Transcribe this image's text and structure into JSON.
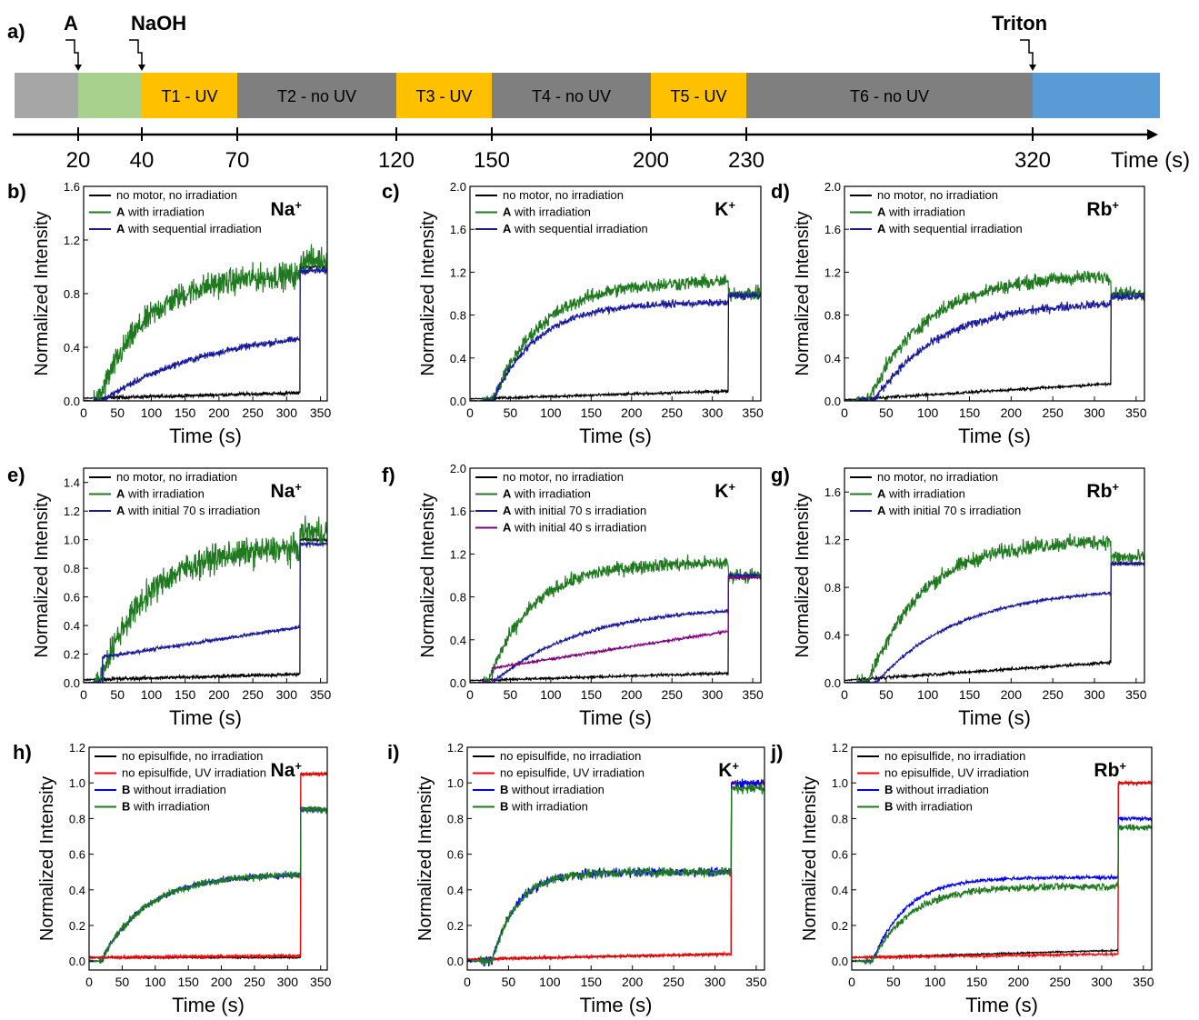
{
  "timeline": {
    "panel_label": "a)",
    "markers": [
      {
        "label": "A",
        "time": 20
      },
      {
        "label": "NaOH",
        "time": 40
      },
      {
        "label": "Triton",
        "time": 320
      }
    ],
    "segments": [
      {
        "start": 0,
        "end": 20,
        "label": "",
        "color": "#a6a6a6"
      },
      {
        "start": 20,
        "end": 40,
        "label": "",
        "color": "#a9d18e"
      },
      {
        "start": 40,
        "end": 70,
        "label": "T1 - UV",
        "color": "#ffc000"
      },
      {
        "start": 70,
        "end": 120,
        "label": "T2 - no UV",
        "color": "#7f7f7f"
      },
      {
        "start": 120,
        "end": 150,
        "label": "T3 - UV",
        "color": "#ffc000"
      },
      {
        "start": 150,
        "end": 200,
        "label": "T4 - no UV",
        "color": "#7f7f7f"
      },
      {
        "start": 200,
        "end": 230,
        "label": "T5 - UV",
        "color": "#ffc000"
      },
      {
        "start": 230,
        "end": 320,
        "label": "T6 - no UV",
        "color": "#7f7f7f"
      },
      {
        "start": 320,
        "end": 360,
        "label": "",
        "color": "#5b9bd5"
      }
    ],
    "ticks": [
      "20",
      "40",
      "70",
      "120",
      "150",
      "200",
      "230",
      "320"
    ],
    "axis_label": "Time (s)"
  },
  "chart_data": [
    {
      "id": "b",
      "panel_label": "b)",
      "ion": "Na",
      "ion_sup": "+",
      "type": "line",
      "xlabel": "Time (s)",
      "ylabel": "Normalized Intensity",
      "xlim": [
        0,
        360
      ],
      "ylim": [
        0,
        1.6
      ],
      "xticks": [
        "0",
        "50",
        "100",
        "150",
        "200",
        "250",
        "300",
        "350"
      ],
      "yticks": [
        "0.0",
        "0.4",
        "0.8",
        "1.2",
        "1.6"
      ],
      "series": [
        {
          "name": "no motor, no irradiation",
          "bold_prefix": "",
          "color": "#000000"
        },
        {
          "name": "with irradiation",
          "bold_prefix": "A",
          "color": "#1f7a1f"
        },
        {
          "name": "with sequential irradiation",
          "bold_prefix": "A",
          "color": "#1a1aa0"
        }
      ]
    },
    {
      "id": "c",
      "panel_label": "c)",
      "ion": "K",
      "ion_sup": "+",
      "type": "line",
      "xlabel": "Time (s)",
      "ylabel": "Normalized Intensity",
      "xlim": [
        0,
        360
      ],
      "ylim": [
        0,
        2.0
      ],
      "xticks": [
        "0",
        "50",
        "100",
        "150",
        "200",
        "250",
        "300",
        "350"
      ],
      "yticks": [
        "0.0",
        "0.4",
        "0.8",
        "1.2",
        "1.6",
        "2.0"
      ],
      "series": [
        {
          "name": "no motor, no irradiation",
          "bold_prefix": "",
          "color": "#000000"
        },
        {
          "name": "with irradiation",
          "bold_prefix": "A",
          "color": "#1f7a1f"
        },
        {
          "name": "with sequential irradiation",
          "bold_prefix": "A",
          "color": "#1a1aa0"
        }
      ]
    },
    {
      "id": "d",
      "panel_label": "d)",
      "ion": "Rb",
      "ion_sup": "+",
      "type": "line",
      "xlabel": "Time (s)",
      "ylabel": "Normalized Intensity",
      "xlim": [
        0,
        360
      ],
      "ylim": [
        0,
        2.0
      ],
      "xticks": [
        "0",
        "50",
        "100",
        "150",
        "200",
        "250",
        "300",
        "350"
      ],
      "yticks": [
        "0.0",
        "0.4",
        "0.8",
        "1.2",
        "1.6",
        "2.0"
      ],
      "series": [
        {
          "name": "no motor, no irradiation",
          "bold_prefix": "",
          "color": "#000000"
        },
        {
          "name": "with irradiation",
          "bold_prefix": "A",
          "color": "#1f7a1f"
        },
        {
          "name": "with sequential irradiation",
          "bold_prefix": "A",
          "color": "#1a1aa0"
        }
      ]
    },
    {
      "id": "e",
      "panel_label": "e)",
      "ion": "Na",
      "ion_sup": "+",
      "type": "line",
      "xlabel": "Time (s)",
      "ylabel": "Normalized Intensity",
      "xlim": [
        0,
        360
      ],
      "ylim": [
        0,
        1.5
      ],
      "xticks": [
        "0",
        "50",
        "100",
        "150",
        "200",
        "250",
        "300",
        "350"
      ],
      "yticks": [
        "0.0",
        "0.2",
        "0.4",
        "0.6",
        "0.8",
        "1.0",
        "1.2",
        "1.4"
      ],
      "series": [
        {
          "name": "no motor, no irradiation",
          "bold_prefix": "",
          "color": "#000000"
        },
        {
          "name": "with irradiation",
          "bold_prefix": "A",
          "color": "#1f7a1f"
        },
        {
          "name": "with initial 70 s irradiation",
          "bold_prefix": "A",
          "color": "#1a1aa0"
        }
      ]
    },
    {
      "id": "f",
      "panel_label": "f)",
      "ion": "K",
      "ion_sup": "+",
      "type": "line",
      "xlabel": "Time (s)",
      "ylabel": "Normalized Intensity",
      "xlim": [
        0,
        360
      ],
      "ylim": [
        0,
        2.0
      ],
      "xticks": [
        "0",
        "50",
        "100",
        "150",
        "200",
        "250",
        "300",
        "350"
      ],
      "yticks": [
        "0.0",
        "0.4",
        "0.8",
        "1.2",
        "1.6",
        "2.0"
      ],
      "series": [
        {
          "name": "no motor, no irradiation",
          "bold_prefix": "",
          "color": "#000000"
        },
        {
          "name": "with irradiation",
          "bold_prefix": "A",
          "color": "#1f7a1f"
        },
        {
          "name": "with initial 70 s irradiation",
          "bold_prefix": "A",
          "color": "#1a1aa0"
        },
        {
          "name": "with initial 40 s irradiation",
          "bold_prefix": "A",
          "color": "#800080"
        }
      ]
    },
    {
      "id": "g",
      "panel_label": "g)",
      "ion": "Rb",
      "ion_sup": "+",
      "type": "line",
      "xlabel": "Time (s)",
      "ylabel": "Normalized Intensity",
      "xlim": [
        0,
        360
      ],
      "ylim": [
        0,
        1.8
      ],
      "xticks": [
        "0",
        "50",
        "100",
        "150",
        "200",
        "250",
        "300",
        "350"
      ],
      "yticks": [
        "0.0",
        "0.4",
        "0.8",
        "1.2",
        "1.6"
      ],
      "series": [
        {
          "name": "no motor, no irradiation",
          "bold_prefix": "",
          "color": "#000000"
        },
        {
          "name": "with irradiation",
          "bold_prefix": "A",
          "color": "#1f7a1f"
        },
        {
          "name": "with initial 70 s irradiation",
          "bold_prefix": "A",
          "color": "#1a1aa0"
        }
      ]
    },
    {
      "id": "h",
      "panel_label": "h)",
      "ion": "Na",
      "ion_sup": "+",
      "type": "line",
      "xlabel": "Time (s)",
      "ylabel": "Normalized Intensity",
      "xlim": [
        0,
        360
      ],
      "ylim": [
        -0.05,
        1.2
      ],
      "xticks": [
        "0",
        "50",
        "100",
        "150",
        "200",
        "250",
        "300",
        "350"
      ],
      "yticks": [
        "0.0",
        "0.2",
        "0.4",
        "0.6",
        "0.8",
        "1.0",
        "1.2"
      ],
      "series": [
        {
          "name": "no episulfide, no irradiation",
          "bold_prefix": "",
          "color": "#000000"
        },
        {
          "name": "no episulfide, UV irradiation",
          "bold_prefix": "",
          "color": "#ff0000"
        },
        {
          "name": "without irradiation",
          "bold_prefix": "B",
          "color": "#0000ff"
        },
        {
          "name": "with irradiation",
          "bold_prefix": "B",
          "color": "#1f7a1f"
        }
      ]
    },
    {
      "id": "i",
      "panel_label": "i)",
      "ion": "K",
      "ion_sup": "+",
      "type": "line",
      "xlabel": "Time (s)",
      "ylabel": "Normalized Intensity",
      "xlim": [
        0,
        360
      ],
      "ylim": [
        -0.05,
        1.2
      ],
      "xticks": [
        "0",
        "50",
        "100",
        "150",
        "200",
        "250",
        "300",
        "350"
      ],
      "yticks": [
        "0.0",
        "0.2",
        "0.4",
        "0.6",
        "0.8",
        "1.0",
        "1.2"
      ],
      "series": [
        {
          "name": "no episulfide, no irradiation",
          "bold_prefix": "",
          "color": "#000000"
        },
        {
          "name": "no episulfide, UV irradiation",
          "bold_prefix": "",
          "color": "#ff0000"
        },
        {
          "name": "without irradiation",
          "bold_prefix": "B",
          "color": "#0000ff"
        },
        {
          "name": "with irradiation",
          "bold_prefix": "B",
          "color": "#1f7a1f"
        }
      ]
    },
    {
      "id": "j",
      "panel_label": "j)",
      "ion": "Rb",
      "ion_sup": "+",
      "type": "line",
      "xlabel": "Time (s)",
      "ylabel": "Normalized Intensity",
      "xlim": [
        0,
        360
      ],
      "ylim": [
        -0.05,
        1.2
      ],
      "xticks": [
        "0",
        "50",
        "100",
        "150",
        "200",
        "250",
        "300",
        "350"
      ],
      "yticks": [
        "0.0",
        "0.2",
        "0.4",
        "0.6",
        "0.8",
        "1.0",
        "1.2"
      ],
      "series": [
        {
          "name": "no episulfide, no irradiation",
          "bold_prefix": "",
          "color": "#000000"
        },
        {
          "name": "no episulfide, UV irradiation",
          "bold_prefix": "",
          "color": "#ff0000"
        },
        {
          "name": "without irradiation",
          "bold_prefix": "B",
          "color": "#0000ff"
        },
        {
          "name": "with irradiation",
          "bold_prefix": "B",
          "color": "#1f7a1f"
        }
      ]
    }
  ]
}
